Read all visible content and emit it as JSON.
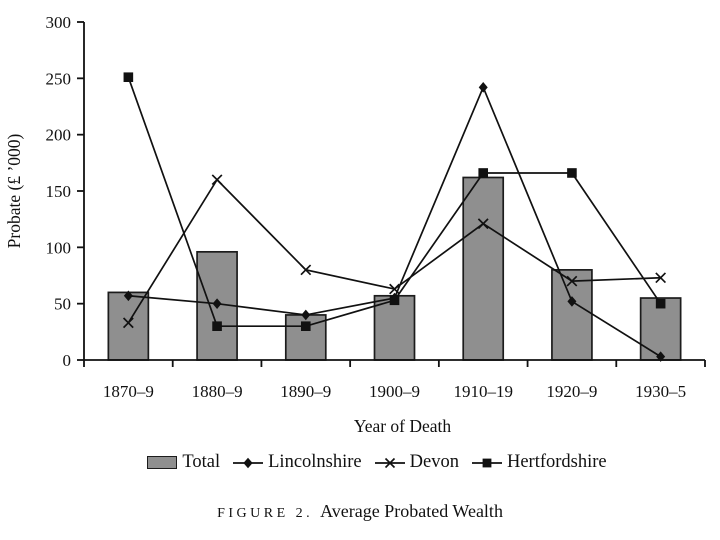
{
  "figure": {
    "caption_label": "FIGURE 2.",
    "caption_text": "Average Probated Wealth"
  },
  "colors": {
    "ink": "#111111",
    "bar_fill": "#8f8f8f",
    "bar_stroke": "#1c1c1c"
  },
  "chart_data": {
    "type": "bar",
    "subtype": "bar-and-line-combo",
    "categories": [
      "1870–9",
      "1880–9",
      "1890–9",
      "1900–9",
      "1910–19",
      "1920–9",
      "1930–5"
    ],
    "bar_series": {
      "name": "Total",
      "values": [
        60,
        96,
        40,
        57,
        162,
        80,
        55
      ]
    },
    "line_series": [
      {
        "name": "Lincolnshire",
        "marker": "diamond",
        "values": [
          57,
          50,
          40,
          55,
          242,
          52,
          3
        ]
      },
      {
        "name": "Devon",
        "marker": "x",
        "values": [
          33,
          160,
          80,
          63,
          121,
          70,
          73
        ]
      },
      {
        "name": "Hertfordshire",
        "marker": "square",
        "values": [
          251,
          30,
          30,
          53,
          166,
          166,
          50
        ]
      }
    ],
    "title": "Average Probated Wealth",
    "xlabel": "Year of Death",
    "ylabel": "Probate (£ ’000)",
    "ylim": [
      0,
      300
    ],
    "ytick_step": 50,
    "yticks": [
      0,
      50,
      100,
      150,
      200,
      250,
      300
    ],
    "grid": false,
    "legend_position": "bottom"
  }
}
